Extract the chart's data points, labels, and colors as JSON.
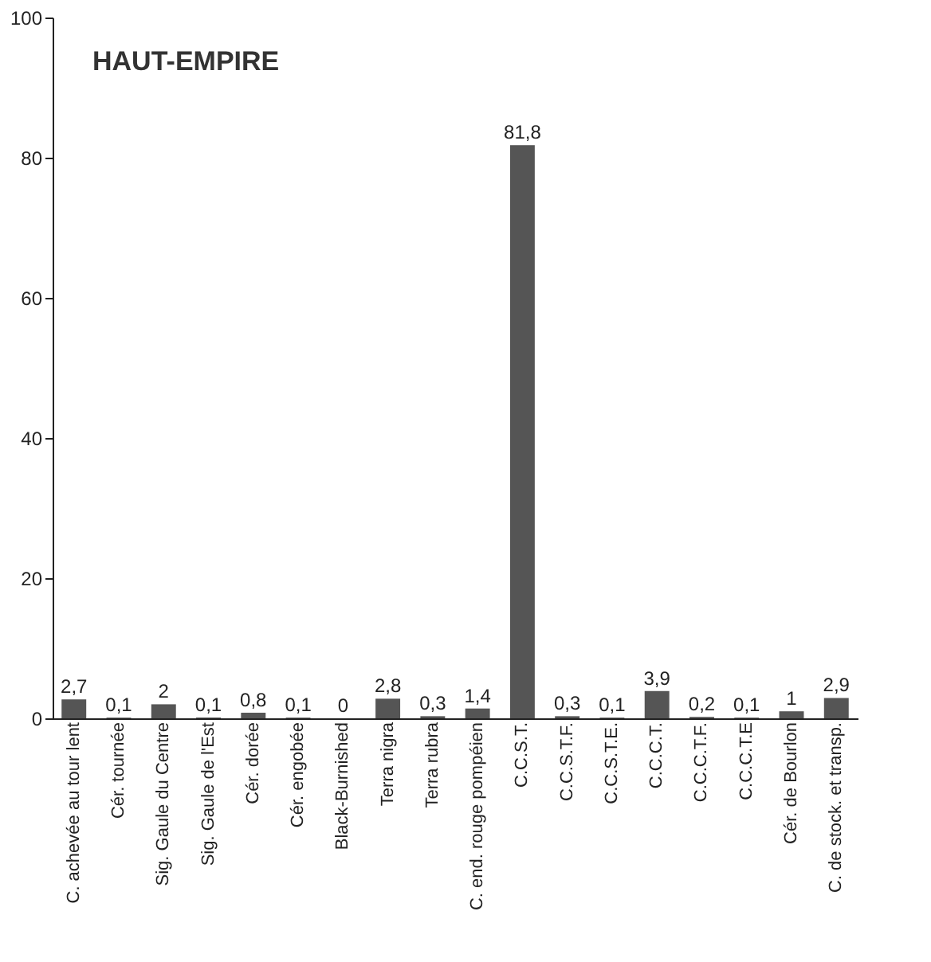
{
  "chart_data": {
    "type": "bar",
    "title": "HAUT-EMPIRE",
    "categories": [
      "C. achevée au tour lent",
      "Cér. tournée",
      "Sig. Gaule du Centre",
      "Sig. Gaule de l'Est",
      "Cér. dorée",
      "Cér. engobée",
      "Black-Burnished",
      "Terra nigra",
      "Terra rubra",
      "C. end. rouge pompéien",
      "C.C.S.T.",
      "C.C.S.T.F.",
      "C.C.S.T.E.",
      "C.C.C.T.",
      "C.C.C.T.F.",
      "C.C.C.T.E",
      "Cér. de Bourlon",
      "C. de stock. et transp."
    ],
    "values": [
      2.7,
      0.1,
      2,
      0.1,
      0.8,
      0.1,
      0,
      2.8,
      0.3,
      1.4,
      81.8,
      0.3,
      0.1,
      3.9,
      0.2,
      0.1,
      1,
      2.9
    ],
    "value_labels": [
      "2,7",
      "0,1",
      "2",
      "0,1",
      "0,8",
      "0,1",
      "0",
      "2,8",
      "0,3",
      "1,4",
      "81,8",
      "0,3",
      "0,1",
      "3,9",
      "0,2",
      "0,1",
      "1",
      "2,9"
    ],
    "color": "#555555",
    "ylim": [
      0,
      100
    ],
    "yticks": [
      0,
      20,
      40,
      60,
      80,
      100
    ],
    "grid": false
  }
}
